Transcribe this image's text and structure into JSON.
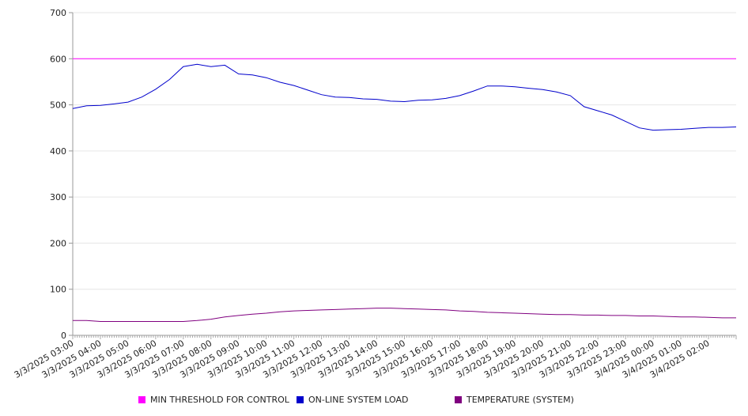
{
  "chart_data": {
    "type": "line",
    "title": "",
    "xlabel": "",
    "ylabel": "",
    "ylim": [
      0,
      700
    ],
    "y_ticks": [
      0,
      100,
      200,
      300,
      400,
      500,
      600,
      700
    ],
    "grid": "horizontal",
    "legend_position": "bottom",
    "x_tick_labels": [
      "3/3/2025 03:00",
      "3/3/2025 04:00",
      "3/3/2025 05:00",
      "3/3/2025 06:00",
      "3/3/2025 07:00",
      "3/3/2025 08:00",
      "3/3/2025 09:00",
      "3/3/2025 10:00",
      "3/3/2025 11:00",
      "3/3/2025 12:00",
      "3/3/2025 13:00",
      "3/3/2025 14:00",
      "3/3/2025 15:00",
      "3/3/2025 16:00",
      "3/3/2025 17:00",
      "3/3/2025 18:00",
      "3/3/2025 19:00",
      "3/3/2025 20:00",
      "3/3/2025 21:00",
      "3/3/2025 22:00",
      "3/3/2025 23:00",
      "3/4/2025 00:00",
      "3/4/2025 01:00",
      "3/4/2025 02:00"
    ],
    "x": [
      "3/3/2025 03:00",
      "3/3/2025 03:30",
      "3/3/2025 04:00",
      "3/3/2025 04:30",
      "3/3/2025 05:00",
      "3/3/2025 05:30",
      "3/3/2025 06:00",
      "3/3/2025 06:30",
      "3/3/2025 07:00",
      "3/3/2025 07:30",
      "3/3/2025 08:00",
      "3/3/2025 08:30",
      "3/3/2025 09:00",
      "3/3/2025 09:30",
      "3/3/2025 10:00",
      "3/3/2025 10:30",
      "3/3/2025 11:00",
      "3/3/2025 11:30",
      "3/3/2025 12:00",
      "3/3/2025 12:30",
      "3/3/2025 13:00",
      "3/3/2025 13:30",
      "3/3/2025 14:00",
      "3/3/2025 14:30",
      "3/3/2025 15:00",
      "3/3/2025 15:30",
      "3/3/2025 16:00",
      "3/3/2025 16:30",
      "3/3/2025 17:00",
      "3/3/2025 17:30",
      "3/3/2025 18:00",
      "3/3/2025 18:30",
      "3/3/2025 19:00",
      "3/3/2025 19:30",
      "3/3/2025 20:00",
      "3/3/2025 20:30",
      "3/3/2025 21:00",
      "3/3/2025 21:30",
      "3/3/2025 22:00",
      "3/3/2025 22:30",
      "3/3/2025 23:00",
      "3/3/2025 23:30",
      "3/4/2025 00:00",
      "3/4/2025 00:30",
      "3/4/2025 01:00",
      "3/4/2025 01:30",
      "3/4/2025 02:00",
      "3/4/2025 02:30",
      "3/4/2025 02:59"
    ],
    "series": [
      {
        "name": "MIN THRESHOLD FOR CONTROL",
        "color": "#ff00ff",
        "values": [
          600,
          600,
          600,
          600,
          600,
          600,
          600,
          600,
          600,
          600,
          600,
          600,
          600,
          600,
          600,
          600,
          600,
          600,
          600,
          600,
          600,
          600,
          600,
          600,
          600,
          600,
          600,
          600,
          600,
          600,
          600,
          600,
          600,
          600,
          600,
          600,
          600,
          600,
          600,
          600,
          600,
          600,
          600,
          600,
          600,
          600,
          600,
          600,
          600
        ]
      },
      {
        "name": "ON-LINE SYSTEM LOAD",
        "color": "#0000cc",
        "values": [
          492,
          498,
          499,
          502,
          506,
          517,
          534,
          555,
          583,
          588,
          583,
          586,
          567,
          565,
          559,
          549,
          542,
          532,
          522,
          517,
          516,
          513,
          512,
          508,
          507,
          510,
          511,
          514,
          520,
          530,
          541,
          541,
          539,
          536,
          533,
          528,
          520,
          496,
          487,
          478,
          464,
          450,
          445,
          446,
          447,
          449,
          451,
          451,
          452
        ]
      },
      {
        "name": "TEMPERATURE (SYSTEM)",
        "color": "#800080",
        "values": [
          32,
          32,
          30,
          30,
          30,
          30,
          30,
          30,
          30,
          32,
          35,
          40,
          43,
          46,
          48,
          51,
          53,
          54,
          55,
          56,
          57,
          58,
          59,
          59,
          58,
          57,
          56,
          55,
          53,
          52,
          50,
          49,
          48,
          47,
          46,
          45,
          45,
          44,
          44,
          43,
          43,
          42,
          42,
          41,
          40,
          40,
          39,
          38,
          38
        ]
      }
    ]
  }
}
